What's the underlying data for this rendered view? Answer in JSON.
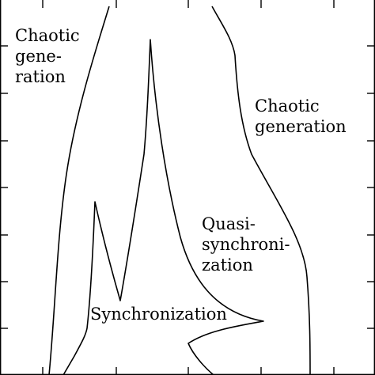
{
  "regions": {
    "chaotic_left": [
      "Chaotic",
      "gene-",
      "ration"
    ],
    "chaotic_right": [
      "Chaotic",
      "generation"
    ],
    "quasi": [
      "Quasi-",
      "synchroni-",
      "zation"
    ],
    "synchronization": [
      "Synchronization"
    ]
  },
  "colors": {
    "line": "#000000",
    "background": "#ffffff"
  }
}
